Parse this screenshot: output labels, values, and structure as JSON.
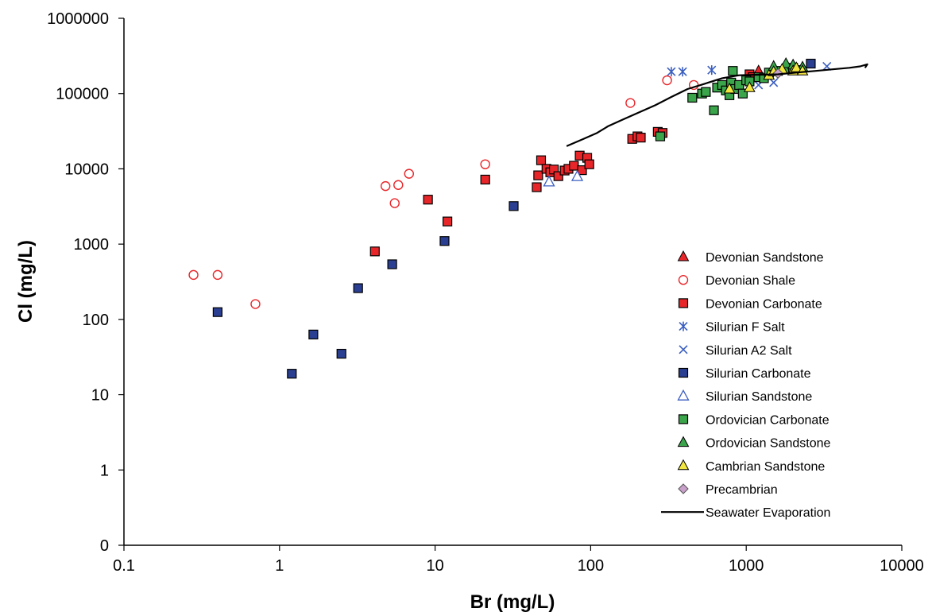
{
  "chart_data": {
    "type": "scatter",
    "title": "",
    "xlabel": "Br (mg/L)",
    "ylabel": "Cl (mg/L)",
    "x_scale": "log",
    "y_scale": "log",
    "xlim": [
      0.1,
      10000
    ],
    "ylim": [
      0.1,
      1000000
    ],
    "x_ticks": [
      0.1,
      1,
      10,
      100,
      1000,
      10000
    ],
    "x_tick_labels": [
      "0.1",
      "1",
      "10",
      "100",
      "1000",
      "10000"
    ],
    "y_ticks": [
      0.1,
      1,
      10,
      100,
      1000,
      10000,
      100000,
      1000000
    ],
    "y_tick_labels": [
      "0",
      "1",
      "10",
      "100",
      "1000",
      "10000",
      "100000",
      "1000000"
    ],
    "grid": false,
    "legend_position": "right",
    "series": [
      {
        "name": "Devonian Sandstone",
        "marker": "triangle",
        "color": "#e8262a",
        "x": [
          1200
        ],
        "y": [
          200000
        ]
      },
      {
        "name": "Devonian Shale",
        "marker": "circle-open",
        "color": "#e8262a",
        "x": [
          0.28,
          0.4,
          0.7,
          4.8,
          5.5,
          5.8,
          6.8,
          21,
          180,
          310,
          460
        ],
        "y": [
          390,
          390,
          160,
          5900,
          3500,
          6100,
          8600,
          11500,
          75000,
          150000,
          130000
        ]
      },
      {
        "name": "Devonian Carbonate",
        "marker": "square",
        "color": "#e8262a",
        "x": [
          4.1,
          9,
          12,
          21,
          45,
          46,
          48,
          52,
          55,
          58,
          62,
          68,
          72,
          78,
          85,
          88,
          95,
          98,
          185,
          200,
          210,
          270,
          290,
          1050,
          1100
        ],
        "y": [
          800,
          3900,
          2000,
          7200,
          5700,
          8200,
          13000,
          10000,
          9000,
          9800,
          8000,
          9500,
          10000,
          11000,
          15000,
          9600,
          14000,
          11500,
          25000,
          27000,
          26000,
          31000,
          30000,
          180000,
          165000
        ]
      },
      {
        "name": "Silurian F Salt",
        "marker": "star",
        "color": "#3b5fc0",
        "x": [
          330,
          390,
          600
        ],
        "y": [
          195000,
          195000,
          205000
        ]
      },
      {
        "name": "Silurian A2 Salt",
        "marker": "x",
        "color": "#3b5fc0",
        "x": [
          1200,
          1500,
          3300
        ],
        "y": [
          130000,
          140000,
          230000
        ]
      },
      {
        "name": "Silurian Carbonate",
        "marker": "square",
        "color": "#2a3f92",
        "x": [
          0.4,
          1.2,
          1.65,
          2.5,
          3.2,
          5.3,
          11.5,
          32,
          2600
        ],
        "y": [
          125,
          19,
          63,
          35,
          260,
          540,
          1100,
          3200,
          250000
        ]
      },
      {
        "name": "Silurian Sandstone",
        "marker": "triangle-open",
        "color": "#3b5fc0",
        "x": [
          54,
          82
        ],
        "y": [
          6700,
          7900
        ]
      },
      {
        "name": "Ordovician Carbonate",
        "marker": "square",
        "color": "#3aa54a",
        "x": [
          280,
          450,
          520,
          550,
          620,
          650,
          700,
          740,
          780,
          800,
          820,
          850,
          900,
          950,
          1000,
          1050,
          1200,
          1300,
          1400,
          1600,
          1800,
          2000,
          2200
        ],
        "y": [
          27000,
          88000,
          100000,
          105000,
          60000,
          120000,
          130000,
          110000,
          95000,
          140000,
          200000,
          115000,
          130000,
          100000,
          150000,
          145000,
          165000,
          160000,
          190000,
          200000,
          210000,
          220000,
          205000
        ]
      },
      {
        "name": "Ordovician Sandstone",
        "marker": "triangle",
        "color": "#3aa54a",
        "x": [
          1500,
          1800,
          2000,
          2300
        ],
        "y": [
          230000,
          250000,
          240000,
          225000
        ]
      },
      {
        "name": "Cambrian Sandstone",
        "marker": "triangle",
        "color": "#f2e640",
        "x": [
          780,
          1050,
          1400,
          1500,
          1700,
          2000,
          2100,
          2300
        ],
        "y": [
          115000,
          120000,
          175000,
          195000,
          210000,
          200000,
          220000,
          200000
        ]
      },
      {
        "name": "Precambrian",
        "marker": "diamond",
        "color": "#c9a0c9",
        "x": [
          1600
        ],
        "y": [
          185000
        ]
      },
      {
        "name": "Seawater Evaporation",
        "marker": "line",
        "color": "#000000",
        "x": [
          70,
          90,
          110,
          130,
          160,
          200,
          260,
          330,
          420,
          540,
          700,
          900,
          1200,
          1600,
          2100,
          2800,
          3600,
          4600,
          5400,
          6000,
          5800
        ],
        "y": [
          20000,
          25000,
          30000,
          37000,
          45000,
          55000,
          70000,
          90000,
          115000,
          135000,
          160000,
          175000,
          178000,
          180000,
          190000,
          200000,
          210000,
          220000,
          230000,
          245000,
          220000
        ]
      }
    ]
  }
}
